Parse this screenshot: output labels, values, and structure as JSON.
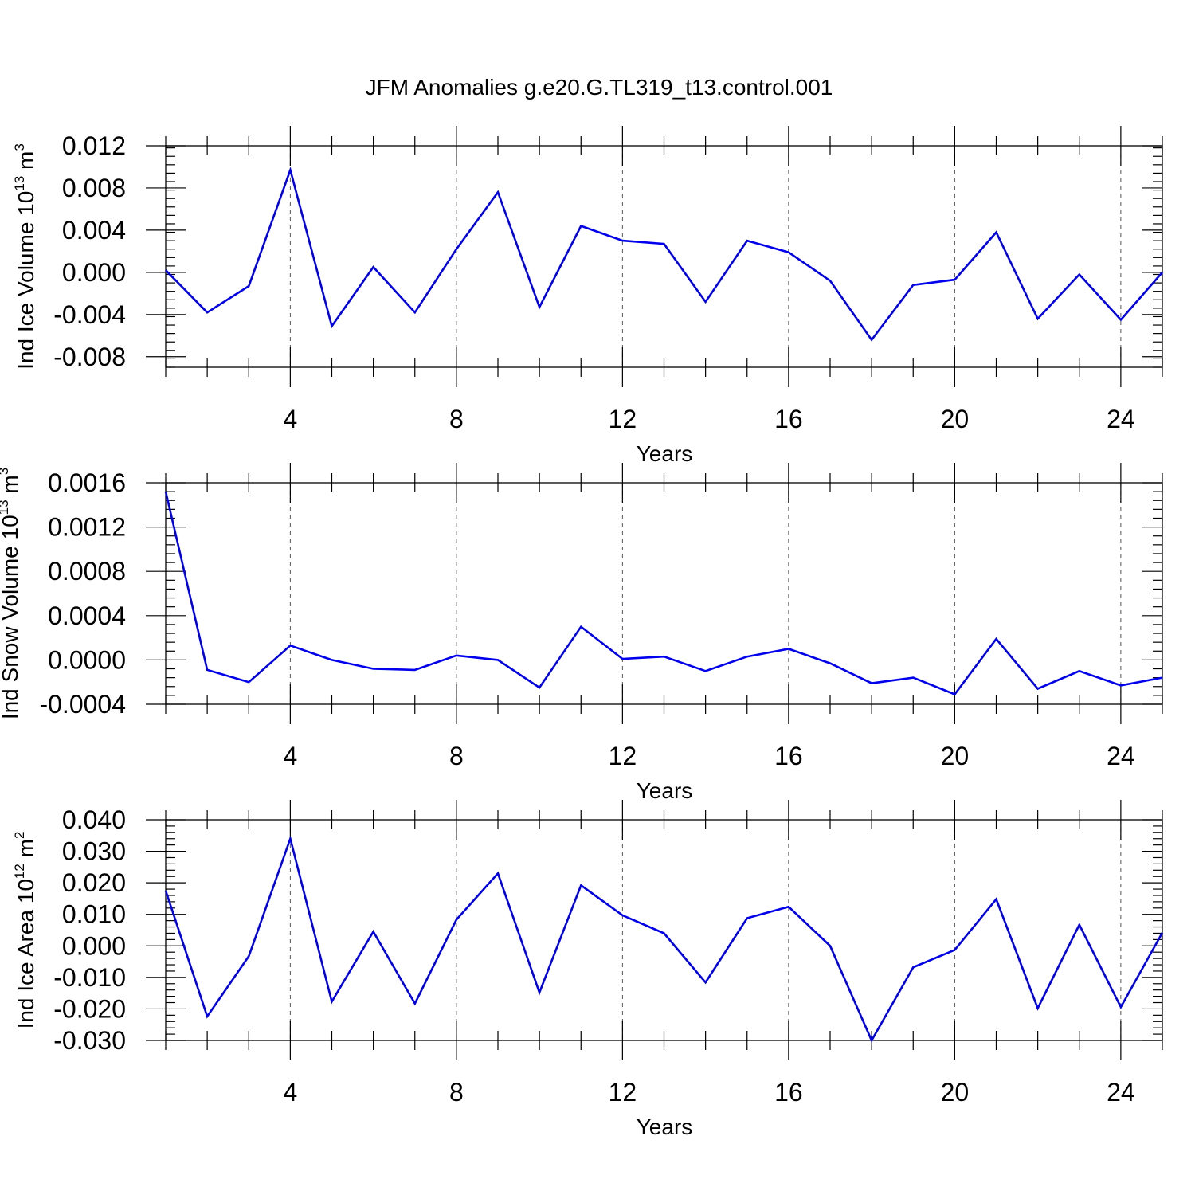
{
  "title": "JFM Anomalies g.e20.G.TL319_t13.control.001",
  "chart_data": [
    {
      "type": "line",
      "ylabel": "Ind Ice Volume 10",
      "ylabel_sup": "13",
      "ylabel_unit": "m",
      "ylabel_unit_sup": "3",
      "xlabel": "Years",
      "xlim": [
        1,
        25
      ],
      "ylim": [
        -0.009,
        0.012
      ],
      "x_ticks": [
        4,
        8,
        12,
        16,
        20,
        24
      ],
      "y_ticks": [
        -0.008,
        -0.004,
        0.0,
        0.004,
        0.008,
        0.012
      ],
      "y_tick_labels": [
        "-0.008",
        "-0.004",
        "0.000",
        "0.004",
        "0.008",
        "0.012"
      ],
      "grid": "vertical dashed at major x ticks",
      "color": "#0000ee",
      "x": [
        1,
        2,
        3,
        4,
        5,
        6,
        7,
        8,
        9,
        10,
        11,
        12,
        13,
        14,
        15,
        16,
        17,
        18,
        19,
        20,
        21,
        22,
        23,
        24,
        25
      ],
      "values": [
        0.0002,
        -0.0038,
        -0.0013,
        0.0097,
        -0.0051,
        0.0005,
        -0.0038,
        0.0022,
        0.0076,
        -0.0033,
        0.0044,
        0.003,
        0.0027,
        -0.0028,
        0.003,
        0.0019,
        -0.0008,
        -0.0064,
        -0.0012,
        -0.0007,
        0.0038,
        -0.0044,
        -0.0002,
        -0.0045,
        0.0
      ]
    },
    {
      "type": "line",
      "ylabel": "Ind Snow Volume 10",
      "ylabel_sup": "13",
      "ylabel_unit": "m",
      "ylabel_unit_sup": "3",
      "xlabel": "Years",
      "xlim": [
        1,
        25
      ],
      "ylim": [
        -0.0004,
        0.0016
      ],
      "x_ticks": [
        4,
        8,
        12,
        16,
        20,
        24
      ],
      "y_ticks": [
        -0.0004,
        0.0,
        0.0004,
        0.0008,
        0.0012,
        0.0016
      ],
      "y_tick_labels": [
        "-0.0004",
        "0.0000",
        "0.0004",
        "0.0008",
        "0.0012",
        "0.0016"
      ],
      "grid": "vertical dashed at major x ticks",
      "color": "#0000ee",
      "x": [
        1,
        2,
        3,
        4,
        5,
        6,
        7,
        8,
        9,
        10,
        11,
        12,
        13,
        14,
        15,
        16,
        17,
        18,
        19,
        20,
        21,
        22,
        23,
        24,
        25
      ],
      "values": [
        0.00152,
        -9e-05,
        -0.0002,
        0.00013,
        0.0,
        -8e-05,
        -9e-05,
        4e-05,
        0.0,
        -0.00025,
        0.0003,
        1e-05,
        3e-05,
        -0.0001,
        3e-05,
        0.0001,
        -3e-05,
        -0.00021,
        -0.00016,
        -0.00031,
        0.00019,
        -0.00026,
        -0.0001,
        -0.00023,
        -0.00016
      ]
    },
    {
      "type": "line",
      "ylabel": "Ind Ice Area 10",
      "ylabel_sup": "12",
      "ylabel_unit": "m",
      "ylabel_unit_sup": "2",
      "xlabel": "Years",
      "xlim": [
        1,
        25
      ],
      "ylim": [
        -0.03,
        0.04
      ],
      "x_ticks": [
        4,
        8,
        12,
        16,
        20,
        24
      ],
      "y_ticks": [
        -0.03,
        -0.02,
        -0.01,
        0.0,
        0.01,
        0.02,
        0.03,
        0.04
      ],
      "y_tick_labels": [
        "-0.030",
        "-0.020",
        "-0.010",
        "0.000",
        "0.010",
        "0.020",
        "0.030",
        "0.040"
      ],
      "grid": "vertical dashed at major x ticks",
      "color": "#0000ee",
      "x": [
        1,
        2,
        3,
        4,
        5,
        6,
        7,
        8,
        9,
        10,
        11,
        12,
        13,
        14,
        15,
        16,
        17,
        18,
        19,
        20,
        21,
        22,
        23,
        24,
        25
      ],
      "values": [
        0.0175,
        -0.0224,
        -0.0033,
        0.034,
        -0.0177,
        0.0045,
        -0.0183,
        0.0083,
        0.023,
        -0.0148,
        0.0192,
        0.0097,
        0.004,
        -0.0116,
        0.0088,
        0.0124,
        0.0,
        -0.03,
        -0.0068,
        -0.0013,
        0.0148,
        -0.0198,
        0.0067,
        -0.0194,
        0.0042
      ]
    }
  ]
}
